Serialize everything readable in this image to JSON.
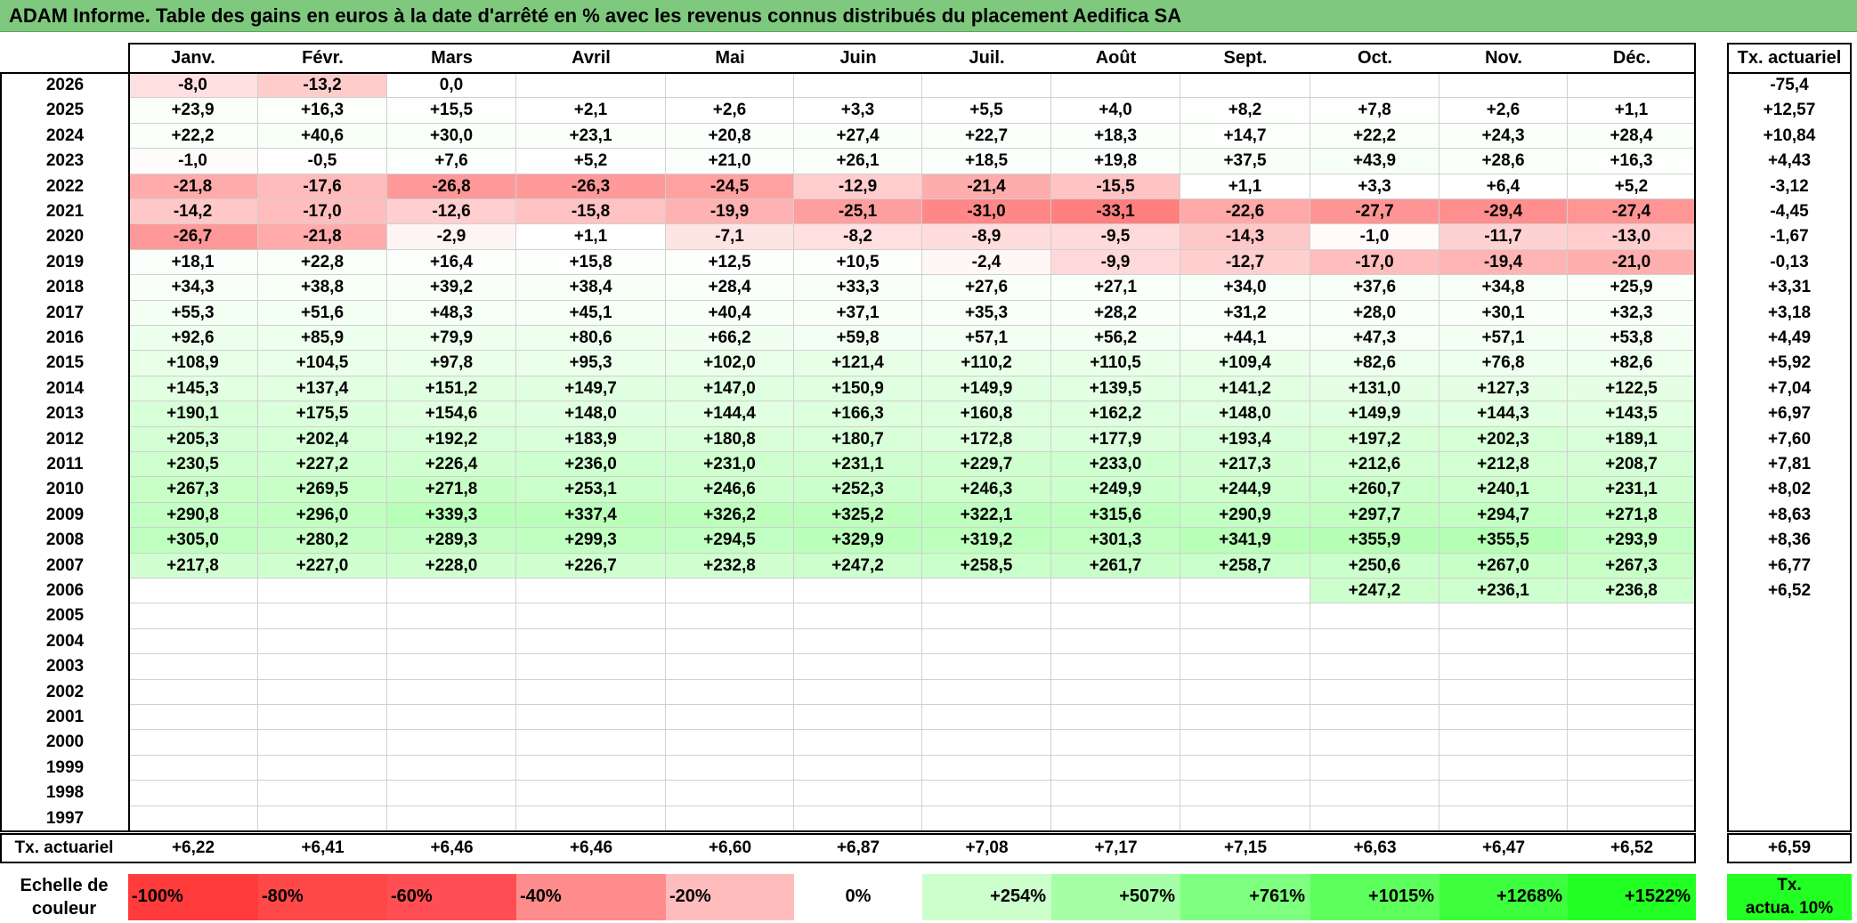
{
  "title": "ADAM Informe. Table des gains en euros à la date d'arrêté en % avec les revenus connus distribués du placement Aedifica SA",
  "months": [
    "Janv.",
    "Févr.",
    "Mars",
    "Avril",
    "Mai",
    "Juin",
    "Juil.",
    "Août",
    "Sept.",
    "Oct.",
    "Nov.",
    "Déc."
  ],
  "rate_header": "Tx. actuariel",
  "rows": [
    {
      "year": "2026",
      "values": [
        "-8,0",
        "-13,2",
        "0,0",
        "",
        "",
        "",
        "",
        "",
        "",
        "",
        "",
        ""
      ],
      "rate": "-75,4"
    },
    {
      "year": "2025",
      "values": [
        "+23,9",
        "+16,3",
        "+15,5",
        "+2,1",
        "+2,6",
        "+3,3",
        "+5,5",
        "+4,0",
        "+8,2",
        "+7,8",
        "+2,6",
        "+1,1"
      ],
      "rate": "+12,57"
    },
    {
      "year": "2024",
      "values": [
        "+22,2",
        "+40,6",
        "+30,0",
        "+23,1",
        "+20,8",
        "+27,4",
        "+22,7",
        "+18,3",
        "+14,7",
        "+22,2",
        "+24,3",
        "+28,4"
      ],
      "rate": "+10,84"
    },
    {
      "year": "2023",
      "values": [
        "-1,0",
        "-0,5",
        "+7,6",
        "+5,2",
        "+21,0",
        "+26,1",
        "+18,5",
        "+19,8",
        "+37,5",
        "+43,9",
        "+28,6",
        "+16,3"
      ],
      "rate": "+4,43"
    },
    {
      "year": "2022",
      "values": [
        "-21,8",
        "-17,6",
        "-26,8",
        "-26,3",
        "-24,5",
        "-12,9",
        "-21,4",
        "-15,5",
        "+1,1",
        "+3,3",
        "+6,4",
        "+5,2"
      ],
      "rate": "-3,12"
    },
    {
      "year": "2021",
      "values": [
        "-14,2",
        "-17,0",
        "-12,6",
        "-15,8",
        "-19,9",
        "-25,1",
        "-31,0",
        "-33,1",
        "-22,6",
        "-27,7",
        "-29,4",
        "-27,4"
      ],
      "rate": "-4,45"
    },
    {
      "year": "2020",
      "values": [
        "-26,7",
        "-21,8",
        "-2,9",
        "+1,1",
        "-7,1",
        "-8,2",
        "-8,9",
        "-9,5",
        "-14,3",
        "-1,0",
        "-11,7",
        "-13,0"
      ],
      "rate": "-1,67"
    },
    {
      "year": "2019",
      "values": [
        "+18,1",
        "+22,8",
        "+16,4",
        "+15,8",
        "+12,5",
        "+10,5",
        "-2,4",
        "-9,9",
        "-12,7",
        "-17,0",
        "-19,4",
        "-21,0"
      ],
      "rate": "-0,13"
    },
    {
      "year": "2018",
      "values": [
        "+34,3",
        "+38,8",
        "+39,2",
        "+38,4",
        "+28,4",
        "+33,3",
        "+27,6",
        "+27,1",
        "+34,0",
        "+37,6",
        "+34,8",
        "+25,9"
      ],
      "rate": "+3,31"
    },
    {
      "year": "2017",
      "values": [
        "+55,3",
        "+51,6",
        "+48,3",
        "+45,1",
        "+40,4",
        "+37,1",
        "+35,3",
        "+28,2",
        "+31,2",
        "+28,0",
        "+30,1",
        "+32,3"
      ],
      "rate": "+3,18"
    },
    {
      "year": "2016",
      "values": [
        "+92,6",
        "+85,9",
        "+79,9",
        "+80,6",
        "+66,2",
        "+59,8",
        "+57,1",
        "+56,2",
        "+44,1",
        "+47,3",
        "+57,1",
        "+53,8"
      ],
      "rate": "+4,49"
    },
    {
      "year": "2015",
      "values": [
        "+108,9",
        "+104,5",
        "+97,8",
        "+95,3",
        "+102,0",
        "+121,4",
        "+110,2",
        "+110,5",
        "+109,4",
        "+82,6",
        "+76,8",
        "+82,6"
      ],
      "rate": "+5,92"
    },
    {
      "year": "2014",
      "values": [
        "+145,3",
        "+137,4",
        "+151,2",
        "+149,7",
        "+147,0",
        "+150,9",
        "+149,9",
        "+139,5",
        "+141,2",
        "+131,0",
        "+127,3",
        "+122,5"
      ],
      "rate": "+7,04"
    },
    {
      "year": "2013",
      "values": [
        "+190,1",
        "+175,5",
        "+154,6",
        "+148,0",
        "+144,4",
        "+166,3",
        "+160,8",
        "+162,2",
        "+148,0",
        "+149,9",
        "+144,3",
        "+143,5"
      ],
      "rate": "+6,97"
    },
    {
      "year": "2012",
      "values": [
        "+205,3",
        "+202,4",
        "+192,2",
        "+183,9",
        "+180,8",
        "+180,7",
        "+172,8",
        "+177,9",
        "+193,4",
        "+197,2",
        "+202,3",
        "+189,1"
      ],
      "rate": "+7,60"
    },
    {
      "year": "2011",
      "values": [
        "+230,5",
        "+227,2",
        "+226,4",
        "+236,0",
        "+231,0",
        "+231,1",
        "+229,7",
        "+233,0",
        "+217,3",
        "+212,6",
        "+212,8",
        "+208,7"
      ],
      "rate": "+7,81"
    },
    {
      "year": "2010",
      "values": [
        "+267,3",
        "+269,5",
        "+271,8",
        "+253,1",
        "+246,6",
        "+252,3",
        "+246,3",
        "+249,9",
        "+244,9",
        "+260,7",
        "+240,1",
        "+231,1"
      ],
      "rate": "+8,02"
    },
    {
      "year": "2009",
      "values": [
        "+290,8",
        "+296,0",
        "+339,3",
        "+337,4",
        "+326,2",
        "+325,2",
        "+322,1",
        "+315,6",
        "+290,9",
        "+297,7",
        "+294,7",
        "+271,8"
      ],
      "rate": "+8,63"
    },
    {
      "year": "2008",
      "values": [
        "+305,0",
        "+280,2",
        "+289,3",
        "+299,3",
        "+294,5",
        "+329,9",
        "+319,2",
        "+301,3",
        "+341,9",
        "+355,9",
        "+355,5",
        "+293,9"
      ],
      "rate": "+8,36"
    },
    {
      "year": "2007",
      "values": [
        "+217,8",
        "+227,0",
        "+228,0",
        "+226,7",
        "+232,8",
        "+247,2",
        "+258,5",
        "+261,7",
        "+258,7",
        "+250,6",
        "+267,0",
        "+267,3"
      ],
      "rate": "+6,77"
    },
    {
      "year": "2006",
      "values": [
        "",
        "",
        "",
        "",
        "",
        "",
        "",
        "",
        "",
        "+247,2",
        "+236,1",
        "+236,8"
      ],
      "rate": "+6,52"
    },
    {
      "year": "2005",
      "values": [
        "",
        "",
        "",
        "",
        "",
        "",
        "",
        "",
        "",
        "",
        "",
        ""
      ],
      "rate": ""
    },
    {
      "year": "2004",
      "values": [
        "",
        "",
        "",
        "",
        "",
        "",
        "",
        "",
        "",
        "",
        "",
        ""
      ],
      "rate": ""
    },
    {
      "year": "2003",
      "values": [
        "",
        "",
        "",
        "",
        "",
        "",
        "",
        "",
        "",
        "",
        "",
        ""
      ],
      "rate": ""
    },
    {
      "year": "2002",
      "values": [
        "",
        "",
        "",
        "",
        "",
        "",
        "",
        "",
        "",
        "",
        "",
        ""
      ],
      "rate": ""
    },
    {
      "year": "2001",
      "values": [
        "",
        "",
        "",
        "",
        "",
        "",
        "",
        "",
        "",
        "",
        "",
        ""
      ],
      "rate": ""
    },
    {
      "year": "2000",
      "values": [
        "",
        "",
        "",
        "",
        "",
        "",
        "",
        "",
        "",
        "",
        "",
        ""
      ],
      "rate": ""
    },
    {
      "year": "1999",
      "values": [
        "",
        "",
        "",
        "",
        "",
        "",
        "",
        "",
        "",
        "",
        "",
        ""
      ],
      "rate": ""
    },
    {
      "year": "1998",
      "values": [
        "",
        "",
        "",
        "",
        "",
        "",
        "",
        "",
        "",
        "",
        "",
        ""
      ],
      "rate": ""
    },
    {
      "year": "1997",
      "values": [
        "",
        "",
        "",
        "",
        "",
        "",
        "",
        "",
        "",
        "",
        "",
        ""
      ],
      "rate": ""
    }
  ],
  "totals": {
    "label": "Tx. actuariel",
    "values": [
      "+6,22",
      "+6,41",
      "+6,46",
      "+6,46",
      "+6,60",
      "+6,87",
      "+7,08",
      "+7,17",
      "+7,15",
      "+6,63",
      "+6,47",
      "+6,52"
    ],
    "rate": "+6,59"
  },
  "scale": {
    "label_line1": "Echelle de",
    "label_line2": "couleur",
    "items": [
      {
        "text": "-100%",
        "color": "#ff3b3b"
      },
      {
        "text": "-80%",
        "color": "#ff4848"
      },
      {
        "text": "-60%",
        "color": "#ff4f55"
      },
      {
        "text": "-40%",
        "color": "#ff8c8c"
      },
      {
        "text": "-20%",
        "color": "#ffbcbc"
      },
      {
        "text": "0%",
        "color": "#ffffff"
      },
      {
        "text": "+254%",
        "color": "#ccffcc"
      },
      {
        "text": "+507%",
        "color": "#a6ffa6"
      },
      {
        "text": "+761%",
        "color": "#7fff7f"
      },
      {
        "text": "+1015%",
        "color": "#5cff5c"
      },
      {
        "text": "+1268%",
        "color": "#3dff3d"
      },
      {
        "text": "+1522%",
        "color": "#22ff22"
      }
    ],
    "rate_line1": "Tx.",
    "rate_line2": "actua. 10%",
    "rate_color": "#22ff22"
  }
}
